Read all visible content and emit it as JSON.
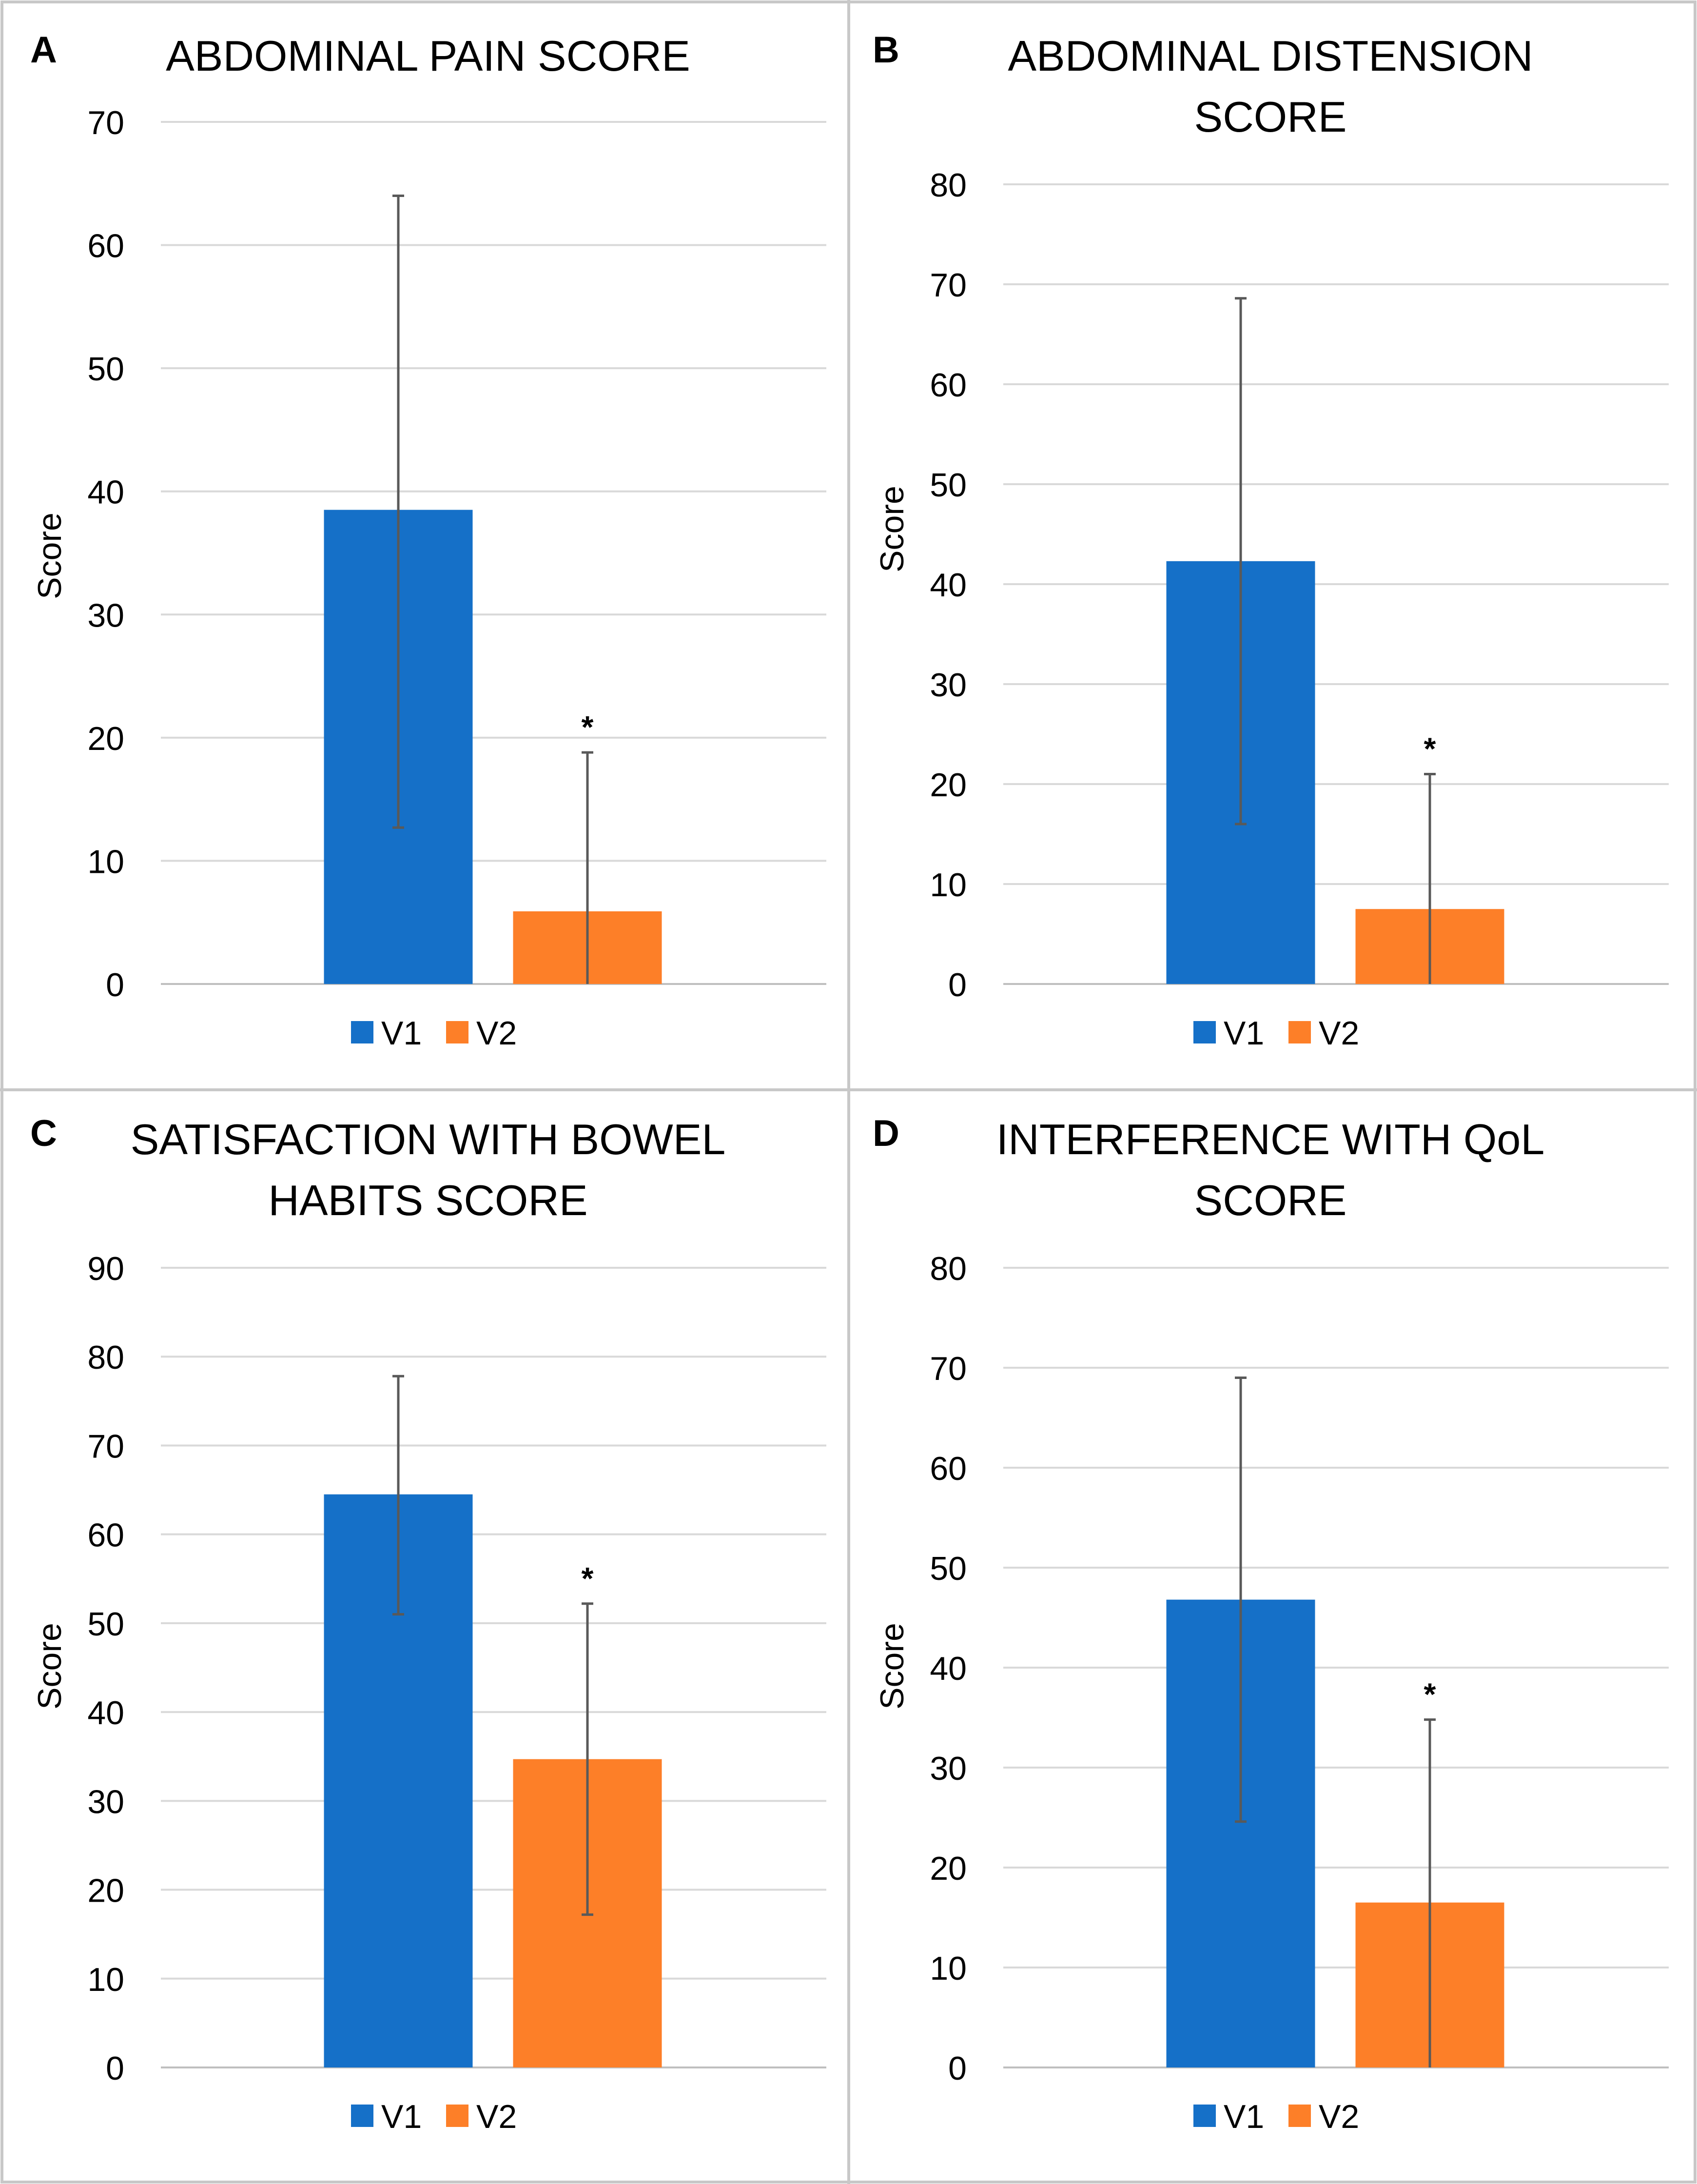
{
  "colors": {
    "v1": "#1570c8",
    "v2": "#fd7f28",
    "grid": "#d9d9d9",
    "error_bar": "#595959",
    "text": "#000000",
    "frame": "#c8c8c8"
  },
  "chart_data": [
    {
      "type": "bar",
      "panel_letter": "A",
      "title": "ABDOMINAL PAIN SCORE",
      "title_lines": [
        "ABDOMINAL PAIN SCORE"
      ],
      "ylabel": "Score",
      "xlabel": "",
      "ylim": [
        0,
        70
      ],
      "yticks": [
        0,
        10,
        20,
        30,
        40,
        50,
        60,
        70
      ],
      "grid": true,
      "legend": "bottom-center",
      "series": [
        {
          "name": "V1",
          "value": 38.5,
          "error_low": 12.7,
          "error_high": 64.0,
          "annotation": ""
        },
        {
          "name": "V2",
          "value": 5.9,
          "error_low": 0,
          "error_high": 18.8,
          "annotation": "*"
        }
      ]
    },
    {
      "type": "bar",
      "panel_letter": "B",
      "title": "ABDOMINAL DISTENSION SCORE",
      "title_lines": [
        "ABDOMINAL DISTENSION",
        "SCORE"
      ],
      "ylabel": "Score",
      "xlabel": "",
      "ylim": [
        0,
        80
      ],
      "yticks": [
        0,
        10,
        20,
        30,
        40,
        50,
        60,
        70,
        80
      ],
      "grid": true,
      "legend": "bottom-center",
      "series": [
        {
          "name": "V1",
          "value": 42.3,
          "error_low": 16.0,
          "error_high": 68.6,
          "annotation": ""
        },
        {
          "name": "V2",
          "value": 7.5,
          "error_low": 0,
          "error_high": 21.0,
          "annotation": "*"
        }
      ]
    },
    {
      "type": "bar",
      "panel_letter": "C",
      "title": "SATISFACTION WITH BOWEL HABITS SCORE",
      "title_lines": [
        "SATISFACTION WITH BOWEL",
        "HABITS SCORE"
      ],
      "ylabel": "Score",
      "xlabel": "",
      "ylim": [
        0,
        90
      ],
      "yticks": [
        0,
        10,
        20,
        30,
        40,
        50,
        60,
        70,
        80,
        90
      ],
      "grid": true,
      "legend": "bottom-center",
      "series": [
        {
          "name": "V1",
          "value": 64.5,
          "error_low": 51.0,
          "error_high": 77.8,
          "annotation": ""
        },
        {
          "name": "V2",
          "value": 34.7,
          "error_low": 17.2,
          "error_high": 52.2,
          "annotation": "*"
        }
      ]
    },
    {
      "type": "bar",
      "panel_letter": "D",
      "title": "INTERFERENCE WITH QoL SCORE",
      "title_lines": [
        "INTERFERENCE WITH QoL",
        "SCORE"
      ],
      "ylabel": "Score",
      "xlabel": "",
      "ylim": [
        0,
        80
      ],
      "yticks": [
        0,
        10,
        20,
        30,
        40,
        50,
        60,
        70,
        80
      ],
      "grid": true,
      "legend": "bottom-center",
      "series": [
        {
          "name": "V1",
          "value": 46.8,
          "error_low": 24.6,
          "error_high": 69.0,
          "annotation": ""
        },
        {
          "name": "V2",
          "value": 16.5,
          "error_low": 0,
          "error_high": 34.8,
          "annotation": "*"
        }
      ]
    }
  ]
}
